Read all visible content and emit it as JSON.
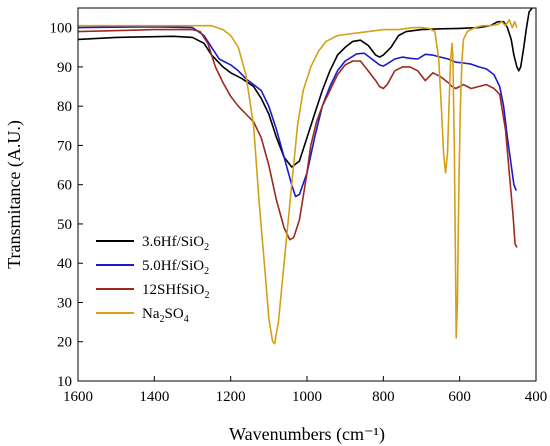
{
  "chart_data": {
    "type": "line",
    "xlabel": "Wavenumbers (cm⁻¹)",
    "ylabel": "Transmitance (A.U.)",
    "xlim": [
      1600,
      400
    ],
    "ylim": [
      10,
      105
    ],
    "x_reversed": true,
    "x_ticks": [
      "1600",
      "1400",
      "1200",
      "1000",
      "800",
      "600",
      "400"
    ],
    "y_ticks": [
      "10",
      "20",
      "30",
      "40",
      "50",
      "60",
      "70",
      "80",
      "90",
      "100"
    ],
    "legend_position": "bottom-left",
    "series": [
      {
        "name": "3.6Hf/SiO",
        "name_sub": "2",
        "color": "#000000",
        "points": [
          [
            1600,
            97
          ],
          [
            1500,
            97.5
          ],
          [
            1350,
            97.8
          ],
          [
            1300,
            97.5
          ],
          [
            1270,
            96
          ],
          [
            1250,
            93
          ],
          [
            1220,
            90
          ],
          [
            1200,
            88.5
          ],
          [
            1170,
            87
          ],
          [
            1140,
            85
          ],
          [
            1120,
            82
          ],
          [
            1100,
            78
          ],
          [
            1080,
            72
          ],
          [
            1060,
            67
          ],
          [
            1040,
            64.5
          ],
          [
            1020,
            66
          ],
          [
            1000,
            72
          ],
          [
            980,
            78
          ],
          [
            960,
            84
          ],
          [
            940,
            89
          ],
          [
            920,
            93
          ],
          [
            900,
            95
          ],
          [
            880,
            96.5
          ],
          [
            860,
            96.8
          ],
          [
            840,
            95.5
          ],
          [
            820,
            93
          ],
          [
            810,
            92.5
          ],
          [
            800,
            93
          ],
          [
            780,
            95
          ],
          [
            760,
            98
          ],
          [
            740,
            99
          ],
          [
            700,
            99.5
          ],
          [
            650,
            99.7
          ],
          [
            600,
            99.8
          ],
          [
            550,
            100
          ],
          [
            520,
            100.5
          ],
          [
            500,
            101.5
          ],
          [
            485,
            101.5
          ],
          [
            475,
            100
          ],
          [
            465,
            97
          ],
          [
            458,
            93
          ],
          [
            450,
            90
          ],
          [
            445,
            89
          ],
          [
            440,
            90
          ],
          [
            432,
            95
          ],
          [
            425,
            100
          ],
          [
            418,
            104
          ],
          [
            410,
            105
          ]
        ]
      },
      {
        "name": "5.0Hf/SiO",
        "name_sub": "2",
        "color": "#1a1acc",
        "points": [
          [
            1600,
            100
          ],
          [
            1400,
            100.2
          ],
          [
            1300,
            100
          ],
          [
            1270,
            98
          ],
          [
            1250,
            95
          ],
          [
            1230,
            92
          ],
          [
            1200,
            90.5
          ],
          [
            1180,
            89
          ],
          [
            1160,
            87
          ],
          [
            1140,
            85.5
          ],
          [
            1120,
            84
          ],
          [
            1100,
            80
          ],
          [
            1080,
            74
          ],
          [
            1060,
            67
          ],
          [
            1040,
            60
          ],
          [
            1030,
            57
          ],
          [
            1020,
            57.5
          ],
          [
            1000,
            63
          ],
          [
            980,
            72
          ],
          [
            960,
            80
          ],
          [
            940,
            85
          ],
          [
            920,
            89
          ],
          [
            900,
            91.5
          ],
          [
            870,
            93.3
          ],
          [
            850,
            93.5
          ],
          [
            830,
            92
          ],
          [
            810,
            90.5
          ],
          [
            800,
            90.2
          ],
          [
            790,
            90.8
          ],
          [
            770,
            92
          ],
          [
            750,
            92.5
          ],
          [
            730,
            92.2
          ],
          [
            710,
            92
          ],
          [
            690,
            93.2
          ],
          [
            670,
            93
          ],
          [
            650,
            92.5
          ],
          [
            630,
            92
          ],
          [
            610,
            91.2
          ],
          [
            590,
            91
          ],
          [
            570,
            90.7
          ],
          [
            550,
            90
          ],
          [
            530,
            89.5
          ],
          [
            510,
            88
          ],
          [
            495,
            85
          ],
          [
            485,
            80
          ],
          [
            475,
            72
          ],
          [
            465,
            65
          ],
          [
            458,
            60
          ],
          [
            452,
            58.5
          ]
        ]
      },
      {
        "name": "12SHfSiO",
        "name_sub": "2",
        "color": "#9b2b1f",
        "points": [
          [
            1600,
            99
          ],
          [
            1400,
            99.5
          ],
          [
            1300,
            99.5
          ],
          [
            1280,
            99
          ],
          [
            1260,
            96
          ],
          [
            1240,
            90
          ],
          [
            1220,
            86
          ],
          [
            1200,
            82.5
          ],
          [
            1180,
            80
          ],
          [
            1160,
            78
          ],
          [
            1140,
            76
          ],
          [
            1120,
            72
          ],
          [
            1100,
            65
          ],
          [
            1080,
            56
          ],
          [
            1060,
            49
          ],
          [
            1045,
            46
          ],
          [
            1035,
            46.5
          ],
          [
            1020,
            51
          ],
          [
            1000,
            63
          ],
          [
            990,
            70
          ],
          [
            975,
            76
          ],
          [
            960,
            80
          ],
          [
            940,
            84
          ],
          [
            920,
            88
          ],
          [
            900,
            90.5
          ],
          [
            880,
            91.5
          ],
          [
            860,
            91.5
          ],
          [
            840,
            89
          ],
          [
            820,
            86.5
          ],
          [
            810,
            85
          ],
          [
            800,
            84.5
          ],
          [
            790,
            85.5
          ],
          [
            770,
            89
          ],
          [
            750,
            90
          ],
          [
            730,
            90
          ],
          [
            710,
            89
          ],
          [
            690,
            86.5
          ],
          [
            680,
            87.5
          ],
          [
            670,
            88.5
          ],
          [
            650,
            87.5
          ],
          [
            630,
            86
          ],
          [
            620,
            85
          ],
          [
            610,
            84.5
          ],
          [
            590,
            85.5
          ],
          [
            570,
            84.5
          ],
          [
            550,
            85
          ],
          [
            530,
            85.5
          ],
          [
            510,
            84.5
          ],
          [
            495,
            83
          ],
          [
            480,
            74
          ],
          [
            470,
            63
          ],
          [
            460,
            52
          ],
          [
            455,
            45
          ],
          [
            450,
            44
          ]
        ]
      },
      {
        "name": "Na",
        "name_sub": "2",
        "name_tail": "SO",
        "name_sub2": "4",
        "color": "#d4a017",
        "points": [
          [
            1600,
            100.5
          ],
          [
            1300,
            100.5
          ],
          [
            1250,
            100.5
          ],
          [
            1220,
            99.5
          ],
          [
            1200,
            98
          ],
          [
            1180,
            95
          ],
          [
            1160,
            88
          ],
          [
            1140,
            75
          ],
          [
            1125,
            55
          ],
          [
            1110,
            38
          ],
          [
            1100,
            26
          ],
          [
            1090,
            20
          ],
          [
            1085,
            19.5
          ],
          [
            1075,
            25
          ],
          [
            1060,
            40
          ],
          [
            1040,
            60
          ],
          [
            1025,
            75
          ],
          [
            1010,
            84
          ],
          [
            990,
            90
          ],
          [
            970,
            94
          ],
          [
            950,
            96.5
          ],
          [
            920,
            98
          ],
          [
            880,
            98.5
          ],
          [
            840,
            99
          ],
          [
            800,
            99.5
          ],
          [
            760,
            99.5
          ],
          [
            720,
            100
          ],
          [
            700,
            100
          ],
          [
            680,
            99.8
          ],
          [
            665,
            99
          ],
          [
            655,
            92
          ],
          [
            648,
            80
          ],
          [
            642,
            68
          ],
          [
            637,
            63
          ],
          [
            632,
            68
          ],
          [
            628,
            80
          ],
          [
            624,
            91
          ],
          [
            620,
            96
          ],
          [
            618,
            93
          ],
          [
            614,
            70
          ],
          [
            611,
            40
          ],
          [
            609,
            21
          ],
          [
            606,
            30
          ],
          [
            602,
            60
          ],
          [
            598,
            80
          ],
          [
            594,
            92
          ],
          [
            590,
            97
          ],
          [
            580,
            99
          ],
          [
            560,
            100
          ],
          [
            540,
            100.5
          ],
          [
            520,
            100.5
          ],
          [
            500,
            100.8
          ],
          [
            490,
            101.5
          ],
          [
            480,
            100.5
          ],
          [
            470,
            102
          ],
          [
            462,
            100
          ],
          [
            456,
            101.5
          ],
          [
            450,
            100
          ]
        ]
      }
    ]
  }
}
